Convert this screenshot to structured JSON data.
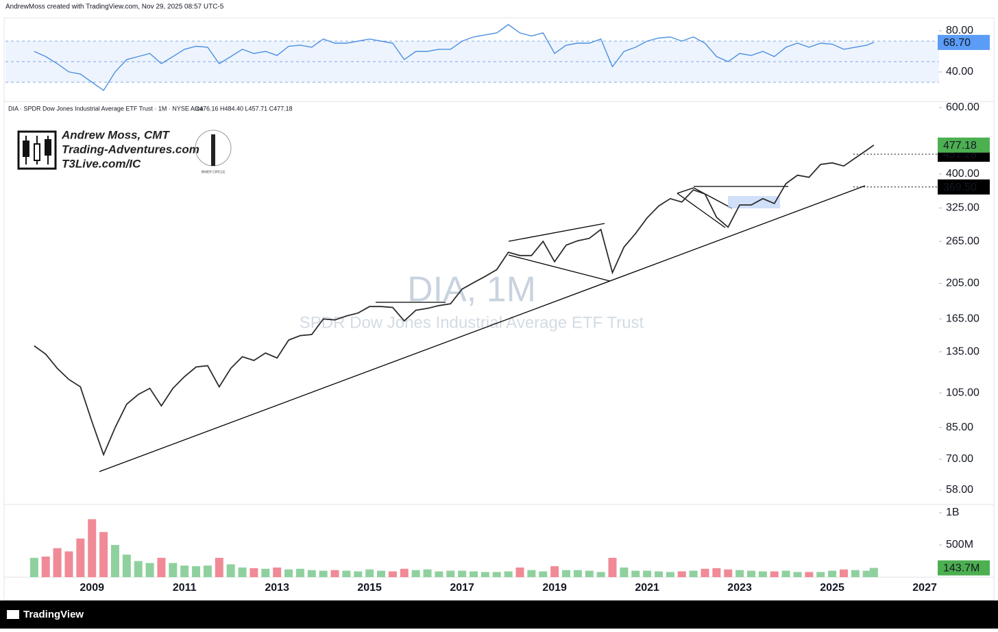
{
  "header": {
    "credit": "AndrewMoss created with TradingView.com, Nov 29, 2025 08:57 UTC-5"
  },
  "logo": {
    "name": "Andrew Moss, CMT",
    "site": "Trading-Adventures.com",
    "link": "T3Live.com/IC",
    "badge": "INNER CIRCLE"
  },
  "footer": {
    "brand": "TradingView"
  },
  "chart_data": [
    {
      "type": "line",
      "color": "#4a8fe2",
      "x": [
        2007.75,
        2008,
        2008.25,
        2008.5,
        2008.75,
        2009,
        2009.25,
        2009.5,
        2009.75,
        2010,
        2010.25,
        2010.5,
        2010.75,
        2011,
        2011.25,
        2011.5,
        2011.75,
        2012,
        2012.25,
        2012.5,
        2012.75,
        2013,
        2013.25,
        2013.5,
        2013.75,
        2014,
        2014.25,
        2014.5,
        2014.75,
        2015,
        2015.25,
        2015.5,
        2015.75,
        2016,
        2016.25,
        2016.5,
        2016.75,
        2017,
        2017.25,
        2017.5,
        2017.75,
        2018,
        2018.25,
        2018.5,
        2018.75,
        2019,
        2019.25,
        2019.5,
        2019.75,
        2020,
        2020.25,
        2020.5,
        2020.75,
        2021,
        2021.25,
        2021.5,
        2021.75,
        2022,
        2022.25,
        2022.5,
        2022.75,
        2023,
        2023.25,
        2023.5,
        2023.75,
        2024,
        2024.25,
        2024.5,
        2024.75,
        2025,
        2025.25,
        2025.5,
        2025.75,
        2025.9
      ],
      "values": [
        60,
        55,
        48,
        40,
        38,
        30,
        22,
        40,
        52,
        55,
        58,
        48,
        55,
        62,
        65,
        64,
        48,
        55,
        62,
        58,
        60,
        56,
        65,
        66,
        64,
        72,
        68,
        68,
        70,
        72,
        70,
        68,
        52,
        60,
        60,
        62,
        62,
        70,
        74,
        76,
        78,
        86,
        78,
        75,
        78,
        58,
        66,
        68,
        68,
        72,
        45,
        60,
        64,
        70,
        73,
        74,
        70,
        74,
        68,
        55,
        50,
        58,
        56,
        60,
        55,
        64,
        68,
        64,
        68,
        67,
        62,
        64,
        66,
        68.7
      ],
      "last_value_label": "68.70",
      "xlim": [
        2007.13,
        2027.31
      ],
      "ylim": [
        11.3,
        91.3
      ],
      "yticks": [
        {
          "value": 80,
          "label": "80.00"
        },
        {
          "value": 40,
          "label": "40.00"
        }
      ]
    },
    {
      "type": "line",
      "title": "DIA · SPDR Dow Jones Industrial Average ETF Trust · 1M · NYSE Arca",
      "ohlc_text": "O476.16 H484.40 L457.71 C477.18",
      "watermark": "DIA, 1M",
      "watermark_subtitle": "SPDR Dow Jones Industrial Average ETF Trust",
      "color": "#2b2b2b",
      "log_scale": true,
      "x": [
        2007.75,
        2008,
        2008.25,
        2008.5,
        2008.75,
        2009,
        2009.25,
        2009.5,
        2009.75,
        2010,
        2010.25,
        2010.5,
        2010.75,
        2011,
        2011.25,
        2011.5,
        2011.75,
        2012,
        2012.25,
        2012.5,
        2012.75,
        2013,
        2013.25,
        2013.5,
        2013.75,
        2014,
        2014.25,
        2014.5,
        2014.75,
        2015,
        2015.25,
        2015.5,
        2015.75,
        2016,
        2016.25,
        2016.5,
        2016.75,
        2017,
        2017.25,
        2017.5,
        2017.75,
        2018,
        2018.25,
        2018.5,
        2018.75,
        2019,
        2019.25,
        2019.5,
        2019.75,
        2020,
        2020.25,
        2020.5,
        2020.75,
        2021,
        2021.25,
        2021.5,
        2021.75,
        2022,
        2022.25,
        2022.5,
        2022.75,
        2023,
        2023.25,
        2023.5,
        2023.75,
        2024,
        2024.25,
        2024.5,
        2024.75,
        2025,
        2025.25,
        2025.5,
        2025.75,
        2025.9
      ],
      "values": [
        140,
        133,
        122,
        114,
        109,
        88,
        72,
        85,
        98,
        104,
        108,
        97,
        108,
        116,
        123,
        124,
        109,
        122,
        131,
        128,
        134,
        130,
        145,
        149,
        150,
        165,
        164,
        168,
        171,
        178,
        178,
        177,
        163,
        174,
        176,
        179,
        181,
        198,
        206,
        214,
        223,
        248,
        243,
        243,
        265,
        234,
        259,
        266,
        270,
        285,
        219,
        256,
        278,
        306,
        329,
        344,
        337,
        363,
        354,
        307,
        289,
        331,
        331,
        344,
        334,
        377,
        397,
        392,
        424,
        428,
        420,
        441,
        463,
        477.18
      ],
      "last_value_label": "477.18",
      "levels": [
        451.28,
        {
          "value": 369.5,
          "label": "369.50"
        }
      ],
      "xlim": [
        2007.13,
        2027.31
      ],
      "ylim": [
        53.1,
        623
      ],
      "yticks": [
        {
          "value": 600,
          "label": "600.00"
        },
        {
          "value": 400,
          "label": "400.00"
        },
        {
          "value": 325,
          "label": "325.00"
        },
        {
          "value": 265,
          "label": "265.00"
        },
        {
          "value": 205,
          "label": "205.00"
        },
        {
          "value": 165,
          "label": "165.00"
        },
        {
          "value": 135,
          "label": "135.00"
        },
        {
          "value": 105,
          "label": "105.00"
        },
        {
          "value": 85,
          "label": "85.00"
        },
        {
          "value": 70,
          "label": "70.00"
        },
        {
          "value": 58,
          "label": "58.00"
        }
      ]
    },
    {
      "type": "bar",
      "up_color": "#8fd19e",
      "down_color": "#f08a96",
      "x": [
        2007.75,
        2008,
        2008.25,
        2008.5,
        2008.75,
        2009,
        2009.25,
        2009.5,
        2009.75,
        2010,
        2010.25,
        2010.5,
        2010.75,
        2011,
        2011.25,
        2011.5,
        2011.75,
        2012,
        2012.25,
        2012.5,
        2012.75,
        2013,
        2013.25,
        2013.5,
        2013.75,
        2014,
        2014.25,
        2014.5,
        2014.75,
        2015,
        2015.25,
        2015.5,
        2015.75,
        2016,
        2016.25,
        2016.5,
        2016.75,
        2017,
        2017.25,
        2017.5,
        2017.75,
        2018,
        2018.25,
        2018.5,
        2018.75,
        2019,
        2019.25,
        2019.5,
        2019.75,
        2020,
        2020.25,
        2020.5,
        2020.75,
        2021,
        2021.25,
        2021.5,
        2021.75,
        2022,
        2022.25,
        2022.5,
        2022.75,
        2023,
        2023.25,
        2023.5,
        2023.75,
        2024,
        2024.25,
        2024.5,
        2024.75,
        2025,
        2025.25,
        2025.5,
        2025.75,
        2025.9
      ],
      "values": [
        300000000,
        320000000,
        450000000,
        400000000,
        600000000,
        900000000,
        700000000,
        500000000,
        350000000,
        250000000,
        220000000,
        300000000,
        220000000,
        180000000,
        170000000,
        180000000,
        300000000,
        200000000,
        150000000,
        140000000,
        130000000,
        150000000,
        120000000,
        130000000,
        110000000,
        100000000,
        110000000,
        100000000,
        90000000,
        120000000,
        100000000,
        90000000,
        130000000,
        110000000,
        120000000,
        90000000,
        100000000,
        100000000,
        90000000,
        80000000,
        80000000,
        90000000,
        150000000,
        110000000,
        90000000,
        170000000,
        110000000,
        110000000,
        100000000,
        80000000,
        300000000,
        150000000,
        100000000,
        100000000,
        90000000,
        80000000,
        90000000,
        100000000,
        130000000,
        140000000,
        120000000,
        110000000,
        100000000,
        90000000,
        90000000,
        100000000,
        80000000,
        80000000,
        80000000,
        100000000,
        120000000,
        110000000,
        100000000,
        143700000
      ],
      "last_value_label": "143.7M",
      "xlim": [
        2007.13,
        2027.31
      ],
      "ylim": [
        0,
        1128000000
      ],
      "yticks": [
        {
          "value": 1000000000,
          "label": "1B"
        },
        {
          "value": 500000000,
          "label": "500M"
        }
      ],
      "xticks": [
        2009,
        2011,
        2013,
        2015,
        2017,
        2019,
        2021,
        2023,
        2025,
        2027
      ]
    }
  ]
}
